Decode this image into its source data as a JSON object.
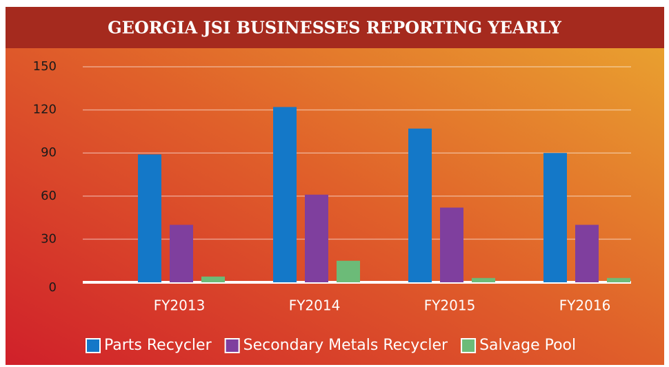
{
  "chart_data": {
    "type": "bar",
    "title": "GEORGIA JSI BUSINESSES REPORTING YEARLY",
    "categories": [
      "FY2013",
      "FY2014",
      "FY2015",
      "FY2016"
    ],
    "series": [
      {
        "name": "Parts Recycler",
        "color": "#1478c8",
        "values": [
          89,
          122,
          107,
          90
        ]
      },
      {
        "name": "Secondary Metals Recycler",
        "color": "#7f3f9e",
        "values": [
          40,
          61,
          52,
          40
        ]
      },
      {
        "name": "Salvage Pool",
        "color": "#6cbb78",
        "values": [
          4,
          15,
          3,
          3
        ]
      }
    ],
    "ylim": [
      0,
      150
    ],
    "yticks": [
      0,
      30,
      60,
      90,
      120,
      150
    ],
    "grid": true,
    "legend": "bottom"
  }
}
